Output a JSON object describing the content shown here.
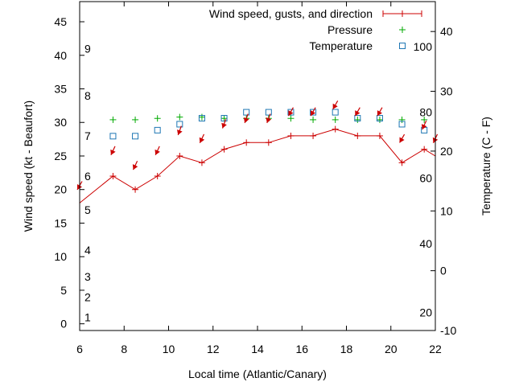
{
  "chart_data": {
    "type": "line",
    "xlabel": "Local time (Atlantic/Canary)",
    "ylabel": "Wind speed (kt - Beaufort)",
    "y2label": "Temperature (C - F)",
    "xlim": [
      6,
      22
    ],
    "ylim": [
      -1,
      48
    ],
    "y2lim": [
      -10,
      45
    ],
    "xticks": [
      6,
      8,
      10,
      12,
      14,
      16,
      18,
      20,
      22
    ],
    "yticks": [
      0,
      5,
      10,
      15,
      20,
      25,
      30,
      35,
      40,
      45
    ],
    "y2ticks": [
      -10,
      0,
      10,
      20,
      30,
      40
    ],
    "beaufort": [
      {
        "label": "1",
        "y": 1
      },
      {
        "label": "2",
        "y": 4
      },
      {
        "label": "3",
        "y": 7
      },
      {
        "label": "4",
        "y": 11
      },
      {
        "label": "5",
        "y": 17
      },
      {
        "label": "6",
        "y": 22
      },
      {
        "label": "7",
        "y": 28
      },
      {
        "label": "8",
        "y": 34
      },
      {
        "label": "9",
        "y": 41
      }
    ],
    "fahrenheit": [
      {
        "label": "20",
        "y2": -7
      },
      {
        "label": "40",
        "y2": 4.5
      },
      {
        "label": "60",
        "y2": 15.5
      },
      {
        "label": "80",
        "y2": 26.5
      },
      {
        "label": "100",
        "y2": 37.5
      }
    ],
    "legend_position": "top-right",
    "series": [
      {
        "name": "Wind speed, gusts, and direction",
        "color": "#cc0000",
        "x": [
          6,
          7.5,
          8.5,
          9.5,
          10.5,
          11.5,
          12.5,
          13.5,
          14.5,
          15.5,
          16.5,
          17.5,
          18.5,
          19.5,
          20.5,
          21.5,
          22
        ],
        "y": [
          18,
          22,
          20,
          22,
          25,
          24,
          26,
          27,
          27,
          28,
          28,
          29,
          28,
          28,
          24,
          26,
          25
        ]
      },
      {
        "name": "Pressure",
        "color": "#00aa00",
        "x": [
          7.5,
          8.5,
          9.5,
          10.5,
          11.5,
          12.5,
          13.5,
          14.5,
          15.5,
          16.5,
          17.5,
          18.5,
          19.5,
          20.5,
          21.5
        ],
        "y": [
          30.4,
          30.4,
          30.6,
          30.8,
          30.8,
          30.6,
          30.6,
          30.6,
          30.6,
          30.4,
          30.4,
          30.4,
          30.4,
          30.4,
          30.4
        ]
      },
      {
        "name": "Temperature",
        "color": "#1f77b4",
        "x": [
          7.5,
          8.5,
          9.5,
          10.5,
          11.5,
          12.5,
          13.5,
          14.5,
          15.5,
          16.5,
          17.5,
          18.5,
          19.5,
          20.5,
          21.5
        ],
        "y2": [
          22.5,
          22.5,
          23.5,
          24.5,
          25.5,
          25.5,
          26.5,
          26.5,
          26.5,
          26.5,
          26.5,
          25.5,
          25.5,
          24.5,
          23.5
        ]
      }
    ],
    "wind_arrows": [
      {
        "x": 6,
        "y": 20.6,
        "dir": 30
      },
      {
        "x": 7.5,
        "y": 25.8,
        "dir": 25
      },
      {
        "x": 8.5,
        "y": 23.6,
        "dir": 25
      },
      {
        "x": 9.5,
        "y": 25.8,
        "dir": 25
      },
      {
        "x": 10.5,
        "y": 28.8,
        "dir": 20
      },
      {
        "x": 11.5,
        "y": 27.6,
        "dir": 25
      },
      {
        "x": 12.5,
        "y": 29.8,
        "dir": 20
      },
      {
        "x": 13.5,
        "y": 30.6,
        "dir": 20
      },
      {
        "x": 14.5,
        "y": 30.6,
        "dir": 20
      },
      {
        "x": 15.5,
        "y": 31.6,
        "dir": 30
      },
      {
        "x": 16.5,
        "y": 31.6,
        "dir": 30
      },
      {
        "x": 17.5,
        "y": 32.6,
        "dir": 30
      },
      {
        "x": 18.5,
        "y": 31.6,
        "dir": 30
      },
      {
        "x": 19.5,
        "y": 31.6,
        "dir": 30
      },
      {
        "x": 20.5,
        "y": 27.6,
        "dir": 30
      },
      {
        "x": 21.5,
        "y": 29.6,
        "dir": 25
      },
      {
        "x": 22,
        "y": 27.6,
        "dir": 25
      }
    ]
  }
}
